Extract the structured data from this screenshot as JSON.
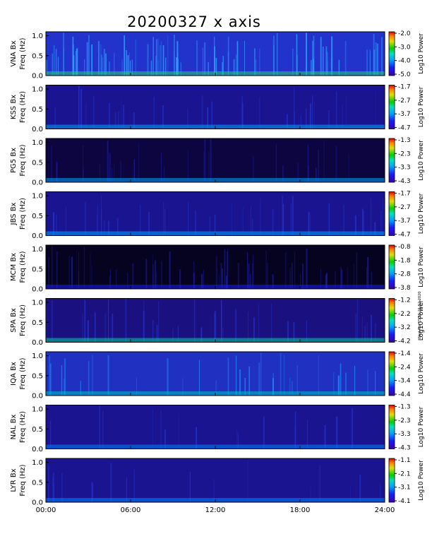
{
  "chart_data": {
    "type": "heatmap",
    "title": "20200327 x axis",
    "xlabel": "",
    "x_ticks": [
      "00:00",
      "06:00",
      "12:00",
      "18:00",
      "24:00"
    ],
    "xlim_hours": [
      0,
      24
    ],
    "colorbar_label": "Log10 Power",
    "side_note": "Wed Apr 15 15:21:52 2020",
    "panels": [
      {
        "station": "VNA",
        "component": "Bx",
        "ylabel_top": "VNA Bx",
        "ylabel_bottom": "Freq (Hz)",
        "y_ticks": [
          "0.0",
          "0.5",
          "1.0"
        ],
        "ylim": [
          0,
          1.1
        ],
        "colorbar_ticks": [
          "-2.0",
          "-3.0",
          "-4.0",
          "-5.0"
        ],
        "clim": [
          -5.0,
          -2.0
        ]
      },
      {
        "station": "KSS",
        "component": "Bx",
        "ylabel_top": "KSS Bx",
        "ylabel_bottom": "Freq (Hz)",
        "y_ticks": [
          "0.0",
          "0.5",
          "1.0"
        ],
        "ylim": [
          0,
          1.1
        ],
        "colorbar_ticks": [
          "-1.7",
          "-2.7",
          "-3.7",
          "-4.7"
        ],
        "clim": [
          -4.7,
          -1.7
        ]
      },
      {
        "station": "PG5",
        "component": "Bx",
        "ylabel_top": "PG5 Bx",
        "ylabel_bottom": "Freq (Hz)",
        "y_ticks": [
          "0.0",
          "0.5",
          "1.0"
        ],
        "ylim": [
          0,
          1.1
        ],
        "colorbar_ticks": [
          "-1.3",
          "-2.3",
          "-3.3",
          "-4.3"
        ],
        "clim": [
          -4.3,
          -1.3
        ]
      },
      {
        "station": "JBS",
        "component": "Bx",
        "ylabel_top": "JBS Bx",
        "ylabel_bottom": "Freq (Hz)",
        "y_ticks": [
          "0.0",
          "0.5",
          "1.0"
        ],
        "ylim": [
          0,
          1.1
        ],
        "colorbar_ticks": [
          "-1.7",
          "-2.7",
          "-3.7",
          "-4.7"
        ],
        "clim": [
          -4.7,
          -1.7
        ]
      },
      {
        "station": "MCM",
        "component": "Bx",
        "ylabel_top": "MCM Bx",
        "ylabel_bottom": "Freq (Hz)",
        "y_ticks": [
          "0.0",
          "0.5",
          "1.0"
        ],
        "ylim": [
          0,
          1.1
        ],
        "colorbar_ticks": [
          "-0.8",
          "-1.8",
          "-2.8",
          "-3.8"
        ],
        "clim": [
          -3.8,
          -0.8
        ]
      },
      {
        "station": "SPA",
        "component": "Bx",
        "ylabel_top": "SPA Bx",
        "ylabel_bottom": "Freq (Hz)",
        "y_ticks": [
          "0.0",
          "0.5",
          "1.0"
        ],
        "ylim": [
          0,
          1.1
        ],
        "colorbar_ticks": [
          "-1.2",
          "-2.2",
          "-3.2",
          "-4.2"
        ],
        "clim": [
          -4.2,
          -1.2
        ]
      },
      {
        "station": "IQA",
        "component": "Bx",
        "ylabel_top": "IQA Bx",
        "ylabel_bottom": "Freq (Hz)",
        "y_ticks": [
          "0.0",
          "0.5",
          "1.0"
        ],
        "ylim": [
          0,
          1.1
        ],
        "colorbar_ticks": [
          "-1.4",
          "-2.4",
          "-3.4",
          "-4.4"
        ],
        "clim": [
          -4.4,
          -1.4
        ]
      },
      {
        "station": "NAL",
        "component": "Bx",
        "ylabel_top": "NAL Bx",
        "ylabel_bottom": "Freq (Hz)",
        "y_ticks": [
          "0.0",
          "0.5",
          "1.0"
        ],
        "ylim": [
          0,
          1.1
        ],
        "colorbar_ticks": [
          "-1.3",
          "-2.3",
          "-3.3",
          "-4.3"
        ],
        "clim": [
          -4.3,
          -1.3
        ]
      },
      {
        "station": "LYR",
        "component": "Bx",
        "ylabel_top": "LYR Bx",
        "ylabel_bottom": "Freq (Hz)",
        "y_ticks": [
          "0.0",
          "0.5",
          "1.0"
        ],
        "ylim": [
          0,
          1.1
        ],
        "colorbar_ticks": [
          "-1.1",
          "-2.1",
          "-3.1",
          "-4.1"
        ],
        "clim": [
          -4.1,
          -1.1
        ]
      }
    ]
  }
}
